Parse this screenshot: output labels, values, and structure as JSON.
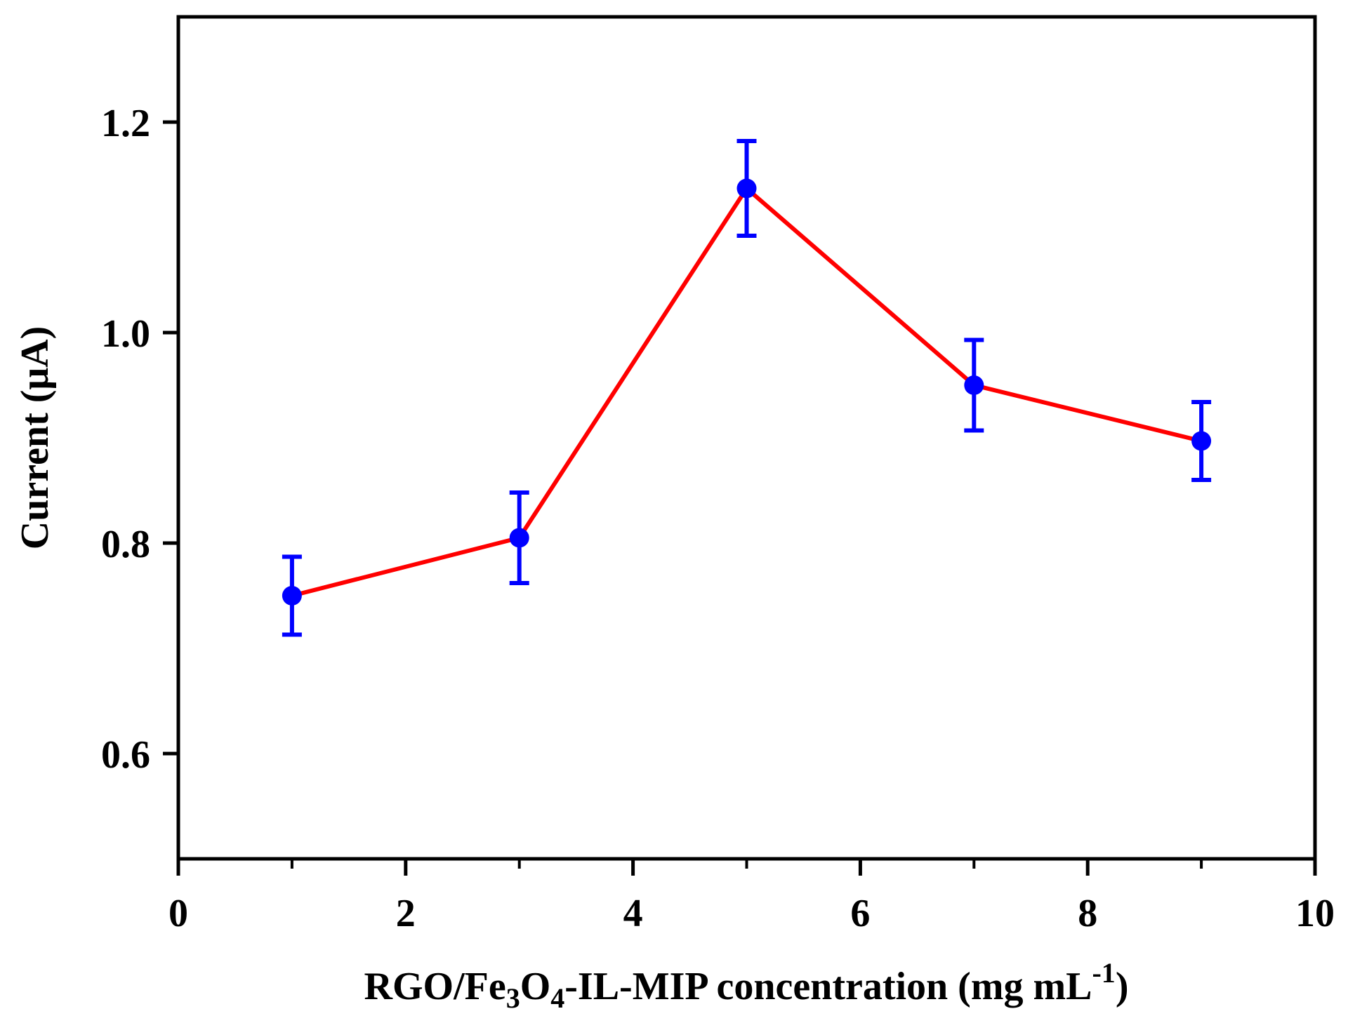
{
  "chart_data": {
    "type": "line",
    "title": "",
    "xlabel_parts": {
      "prefix": "RGO/Fe",
      "sub1": "3",
      "mid": "O",
      "sub2": "4",
      "suffix": "-IL-MIP concentration (mg mL",
      "sup": "-1",
      "close": ")"
    },
    "ylabel": "Current (μA)",
    "xlim": [
      0,
      10
    ],
    "ylim": [
      0.5,
      1.3
    ],
    "xticks": [
      0,
      2,
      4,
      6,
      8,
      10
    ],
    "xtick_labels": [
      "0",
      "2",
      "4",
      "6",
      "8",
      "10"
    ],
    "yticks": [
      0.6,
      0.8,
      1.0,
      1.2
    ],
    "ytick_labels": [
      "0.6",
      "0.8",
      "1.0",
      "1.2"
    ],
    "grid": false,
    "series": [
      {
        "name": "Current",
        "line_color": "#ff0000",
        "marker_color": "#0000ff",
        "x": [
          1,
          3,
          5,
          7,
          9
        ],
        "y": [
          0.75,
          0.805,
          1.137,
          0.95,
          0.897
        ],
        "error": [
          0.037,
          0.043,
          0.045,
          0.043,
          0.037
        ]
      }
    ]
  }
}
